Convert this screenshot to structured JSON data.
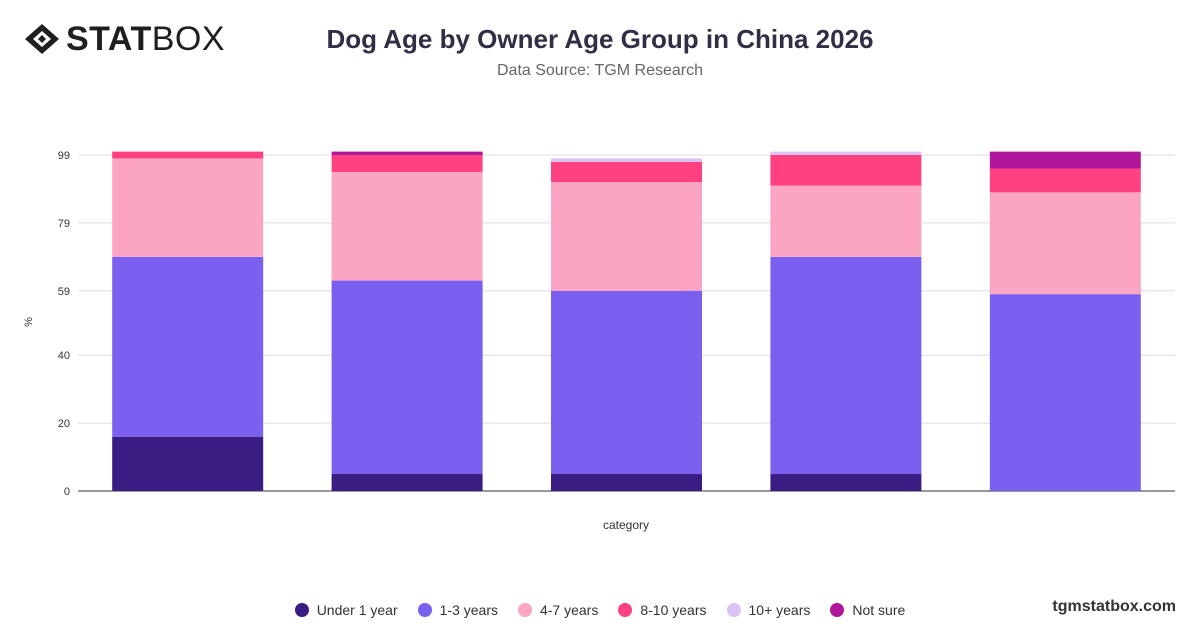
{
  "header": {
    "logo_bold": "STAT",
    "logo_light": "BOX",
    "title": "Dog Age by Owner Age Group in China 2026",
    "subtitle": "Data Source: TGM Research"
  },
  "footer": {
    "brand": "tgmstatbox.com"
  },
  "colors": {
    "under_1_year": "#3a1d82",
    "1_3_years": "#7b5fef",
    "4_7_years": "#fca4c3",
    "8_10_years": "#ff4081",
    "10_plus_years": "#d9c3f5",
    "not_sure": "#b0169a"
  },
  "chart_data": {
    "type": "bar",
    "stacked": true,
    "xlabel": "category",
    "ylabel": "%",
    "ylim": [
      0,
      99
    ],
    "yticks": [
      0,
      20,
      40,
      59,
      79,
      99
    ],
    "grid": true,
    "legend_position": "bottom",
    "categories": [
      "",
      "",
      "",
      "",
      ""
    ],
    "series": [
      {
        "name": "Under 1 year",
        "color": "#3a1d82",
        "values": [
          16,
          5,
          5,
          5,
          0
        ]
      },
      {
        "name": "1-3 years",
        "color": "#7b5fef",
        "values": [
          53,
          57,
          54,
          64,
          58
        ]
      },
      {
        "name": "4-7 years",
        "color": "#fca4c3",
        "values": [
          29,
          32,
          32,
          21,
          30
        ]
      },
      {
        "name": "8-10 years",
        "color": "#ff4081",
        "values": [
          2,
          5,
          6,
          9,
          7
        ]
      },
      {
        "name": "10+ years",
        "color": "#d9c3f5",
        "values": [
          0,
          0,
          1,
          1,
          0
        ]
      },
      {
        "name": "Not sure",
        "color": "#b0169a",
        "values": [
          0,
          1,
          0,
          0,
          5
        ]
      }
    ]
  }
}
